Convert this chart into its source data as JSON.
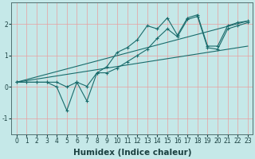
{
  "title": "",
  "xlabel": "Humidex (Indice chaleur)",
  "xlim": [
    -0.5,
    23.5
  ],
  "ylim": [
    -1.5,
    2.7
  ],
  "bg_color": "#c5e8e8",
  "grid_color": "#e8a0a0",
  "line_color": "#1a6b6b",
  "line1_x": [
    0,
    1,
    2,
    3,
    4,
    5,
    6,
    7,
    8,
    9,
    10,
    11,
    12,
    13,
    14,
    15,
    16,
    17,
    18,
    19,
    20,
    21,
    22,
    23
  ],
  "line1_y": [
    0.15,
    0.15,
    0.15,
    0.15,
    0.15,
    0.0,
    0.15,
    0.02,
    0.45,
    0.65,
    1.1,
    1.25,
    1.5,
    1.95,
    1.85,
    2.2,
    1.65,
    2.2,
    2.3,
    1.3,
    1.3,
    1.95,
    2.05,
    2.1
  ],
  "line2_x": [
    0,
    1,
    2,
    3,
    4,
    5,
    6,
    7,
    8,
    9,
    10,
    11,
    12,
    13,
    14,
    15,
    16,
    17,
    18,
    19,
    20,
    21,
    22,
    23
  ],
  "line2_y": [
    0.15,
    0.15,
    0.15,
    0.15,
    0.0,
    -0.75,
    0.15,
    -0.45,
    0.45,
    0.45,
    0.6,
    0.8,
    1.0,
    1.2,
    1.55,
    1.85,
    1.6,
    2.15,
    2.25,
    1.25,
    1.2,
    1.85,
    1.95,
    2.05
  ],
  "line3_x": [
    0,
    23
  ],
  "line3_y": [
    0.15,
    2.1
  ],
  "line4_x": [
    0,
    23
  ],
  "line4_y": [
    0.15,
    1.3
  ],
  "xticks": [
    0,
    1,
    2,
    3,
    4,
    5,
    6,
    7,
    8,
    9,
    10,
    11,
    12,
    13,
    14,
    15,
    16,
    17,
    18,
    19,
    20,
    21,
    22,
    23
  ],
  "yticks": [
    -1,
    0,
    1,
    2
  ],
  "tick_fontsize": 5.5,
  "xlabel_fontsize": 7.5,
  "xlabel_fontweight": "bold"
}
